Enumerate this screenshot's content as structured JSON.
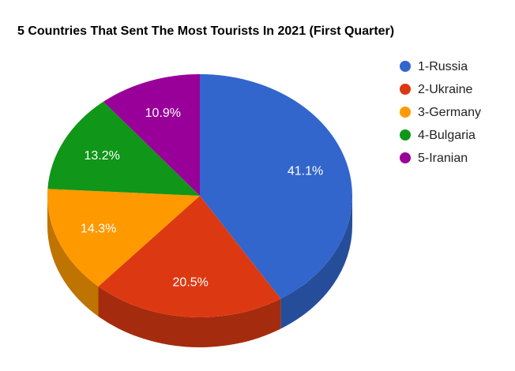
{
  "chart_data": {
    "type": "pie",
    "title": "5 Countries That Sent The Most Tourists In 2021 (First Quarter)",
    "categories": [
      "1-Russia",
      "2-Ukraine",
      "3-Germany",
      "4-Bulgaria",
      "5-Iranian"
    ],
    "values": [
      41.1,
      20.5,
      14.3,
      13.2,
      10.9
    ],
    "value_labels": [
      "41.1%",
      "20.5%",
      "14.3%",
      "13.2%",
      "10.9%"
    ],
    "colors": [
      "#3366cc",
      "#dc3912",
      "#ff9900",
      "#109618",
      "#990099"
    ],
    "side_colors": [
      "#264d99",
      "#a52b0e",
      "#bf7300",
      "#0c7112",
      "#730073"
    ],
    "legend_position": "right",
    "style": "3d"
  }
}
